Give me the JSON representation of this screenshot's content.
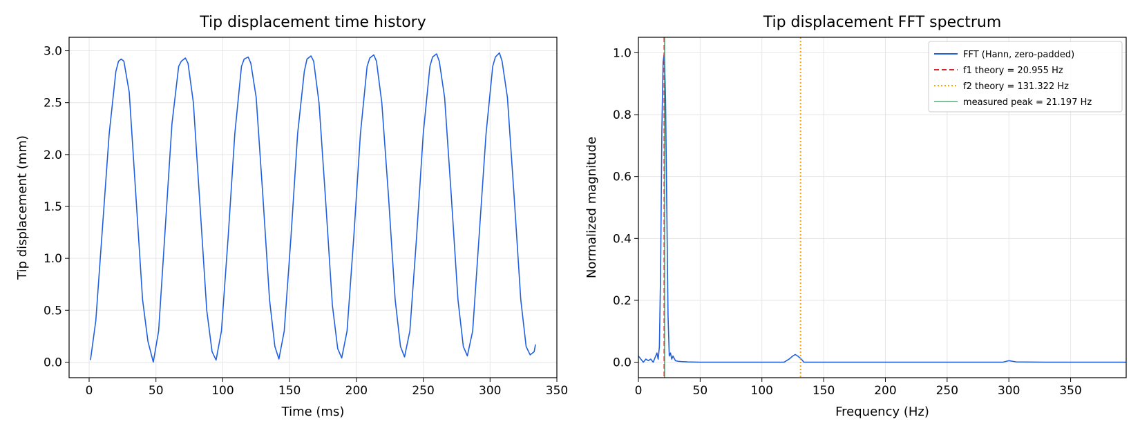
{
  "chart_data": [
    {
      "type": "line",
      "title": "Tip displacement time history",
      "xlabel": "Time (ms)",
      "ylabel": "Tip displacement (mm)",
      "xlim": [
        -15,
        350
      ],
      "ylim": [
        -0.15,
        3.13
      ],
      "xticks": [
        0,
        50,
        100,
        150,
        200,
        250,
        300,
        350
      ],
      "yticks": [
        0.0,
        0.5,
        1.0,
        1.5,
        2.0,
        2.5,
        3.0
      ],
      "xtick_labels": [
        "0",
        "50",
        "100",
        "150",
        "200",
        "250",
        "300",
        "350"
      ],
      "ytick_labels": [
        "0.0",
        "0.5",
        "1.0",
        "1.5",
        "2.0",
        "2.5",
        "3.0"
      ],
      "grid": true,
      "color": "#1f5fe0",
      "series": [
        {
          "x": [
            1,
            5,
            10,
            15,
            20,
            22,
            24,
            26,
            30,
            35,
            40,
            44,
            48,
            52,
            57,
            62,
            67,
            69,
            72,
            74,
            78,
            83,
            88,
            92,
            95,
            99,
            104,
            109,
            114,
            116,
            119,
            121,
            125,
            130,
            135,
            139,
            142,
            146,
            151,
            156,
            161,
            163,
            166,
            168,
            172,
            177,
            182,
            186,
            189,
            193,
            198,
            203,
            208,
            210,
            213,
            215,
            219,
            224,
            229,
            233,
            236,
            240,
            245,
            250,
            255,
            257,
            260,
            262,
            266,
            271,
            276,
            280,
            283,
            287,
            292,
            297,
            302,
            304,
            307,
            309,
            313,
            318,
            323,
            327,
            330,
            333,
            334
          ],
          "y": [
            0.02,
            0.4,
            1.3,
            2.2,
            2.8,
            2.9,
            2.92,
            2.9,
            2.6,
            1.6,
            0.6,
            0.2,
            0.0,
            0.3,
            1.3,
            2.3,
            2.85,
            2.9,
            2.93,
            2.88,
            2.5,
            1.5,
            0.5,
            0.1,
            0.02,
            0.3,
            1.2,
            2.2,
            2.85,
            2.92,
            2.94,
            2.88,
            2.55,
            1.6,
            0.6,
            0.15,
            0.03,
            0.3,
            1.2,
            2.2,
            2.8,
            2.92,
            2.95,
            2.9,
            2.5,
            1.55,
            0.55,
            0.13,
            0.04,
            0.3,
            1.2,
            2.2,
            2.85,
            2.93,
            2.96,
            2.9,
            2.5,
            1.6,
            0.6,
            0.15,
            0.05,
            0.3,
            1.2,
            2.2,
            2.85,
            2.94,
            2.97,
            2.9,
            2.55,
            1.6,
            0.6,
            0.15,
            0.06,
            0.3,
            1.25,
            2.2,
            2.85,
            2.94,
            2.98,
            2.9,
            2.55,
            1.6,
            0.6,
            0.15,
            0.07,
            0.1,
            0.17
          ]
        }
      ]
    },
    {
      "type": "line",
      "title": "Tip displacement FFT spectrum",
      "xlabel": "Frequency (Hz)",
      "ylabel": "Normalized magnitude",
      "xlim": [
        0,
        395
      ],
      "ylim": [
        -0.05,
        1.05
      ],
      "xticks": [
        0,
        50,
        100,
        150,
        200,
        250,
        300,
        350
      ],
      "yticks": [
        0.0,
        0.2,
        0.4,
        0.6,
        0.8,
        1.0
      ],
      "xtick_labels": [
        "0",
        "50",
        "100",
        "150",
        "200",
        "250",
        "300",
        "350"
      ],
      "ytick_labels": [
        "0.0",
        "0.2",
        "0.4",
        "0.6",
        "0.8",
        "1.0"
      ],
      "grid": true,
      "legend_position": "upper right",
      "series": [
        {
          "name": "FFT (Hann, zero-padded)",
          "style": "solid",
          "color": "#1f5fe0",
          "x": [
            0,
            2,
            4,
            6,
            8,
            10,
            12,
            14,
            15,
            16,
            17,
            18,
            19,
            20,
            21,
            22,
            23,
            24,
            25,
            26,
            27,
            28,
            30,
            32,
            35,
            40,
            50,
            60,
            80,
            100,
            118,
            122,
            125,
            127,
            129,
            132,
            134,
            140,
            160,
            200,
            250,
            295,
            300,
            303,
            306,
            330,
            360,
            395
          ],
          "y": [
            0.02,
            0.01,
            0.0,
            0.01,
            0.005,
            0.01,
            0.0,
            0.02,
            0.03,
            0.01,
            0.05,
            0.3,
            0.75,
            0.97,
            1.0,
            0.85,
            0.5,
            0.15,
            0.02,
            0.03,
            0.01,
            0.02,
            0.005,
            0.003,
            0.002,
            0.001,
            0.0,
            0.0,
            0.0,
            0.0,
            0.0,
            0.01,
            0.02,
            0.025,
            0.02,
            0.01,
            0.0,
            0.0,
            0.0,
            0.0,
            0.0,
            0.0,
            0.005,
            0.003,
            0.001,
            0.0,
            0.0,
            0.0
          ]
        },
        {
          "name": "f1 theory = 20.955 Hz",
          "style": "dashed",
          "color": "#d62728",
          "vline": 20.955
        },
        {
          "name": "f2 theory = 131.322 Hz",
          "style": "dotted",
          "color": "#ff9f00",
          "vline": 131.322
        },
        {
          "name": "measured peak = 21.197 Hz",
          "style": "solid-thin",
          "color": "#2ca05a",
          "vline": 21.197
        }
      ]
    }
  ]
}
